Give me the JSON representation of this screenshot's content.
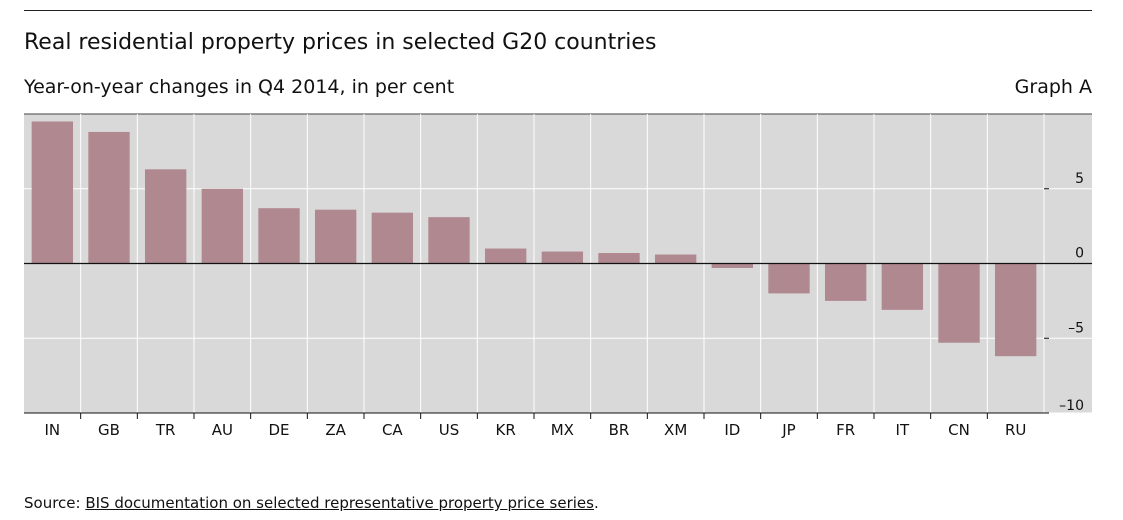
{
  "header": {
    "title": "Real residential property prices in selected G20 countries",
    "subtitle": "Year-on-year changes in Q4 2014, in per cent",
    "graph_id": "Graph A"
  },
  "footer": {
    "source_prefix": "Source: ",
    "source_link": "BIS documentation on selected representative property price series",
    "source_suffix": "."
  },
  "colors": {
    "bar": "#b08890",
    "plot_bg": "#d9d9d9",
    "grid": "#ffffff"
  },
  "chart_data": {
    "type": "bar",
    "title": "Real residential property prices in selected G20 countries",
    "subtitle": "Year-on-year changes in Q4 2014, in per cent",
    "categories": [
      "IN",
      "GB",
      "TR",
      "AU",
      "DE",
      "ZA",
      "CA",
      "US",
      "KR",
      "MX",
      "BR",
      "XM",
      "ID",
      "JP",
      "FR",
      "IT",
      "CN",
      "RU"
    ],
    "values": [
      9.5,
      8.8,
      6.3,
      5.0,
      3.7,
      3.6,
      3.4,
      3.1,
      1.0,
      0.8,
      0.7,
      0.6,
      -0.3,
      -2.0,
      -2.5,
      -3.1,
      -5.3,
      -6.2
    ],
    "ylim": [
      -10,
      10
    ],
    "yticks": [
      -10,
      -5,
      0,
      5
    ],
    "ytick_labels": [
      "–10",
      "–5",
      "0",
      "5"
    ],
    "grid": true,
    "legend": "none",
    "y_axis_side": "right"
  }
}
